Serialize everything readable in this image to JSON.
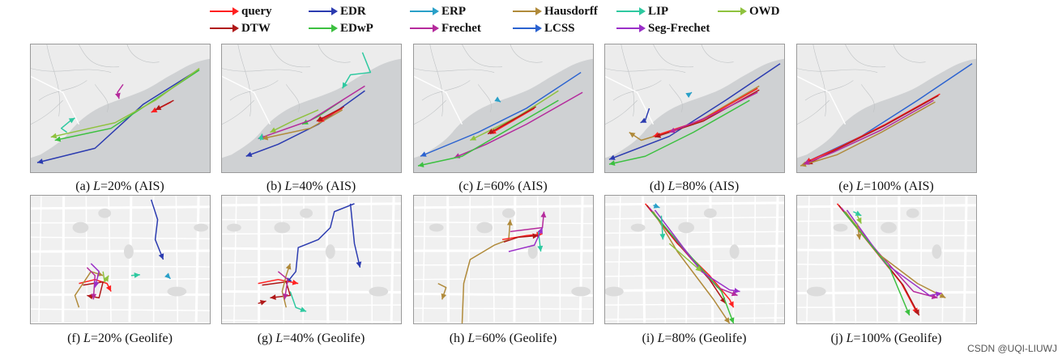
{
  "legend": [
    {
      "label": "query",
      "color": "#ff2020"
    },
    {
      "label": "EDR",
      "color": "#2b3bb0"
    },
    {
      "label": "ERP",
      "color": "#2aa0c8"
    },
    {
      "label": "Hausdorff",
      "color": "#b08a3a"
    },
    {
      "label": "LIP",
      "color": "#2ec9a0"
    },
    {
      "label": "OWD",
      "color": "#8fc23e"
    },
    {
      "label": "DTW",
      "color": "#b01818"
    },
    {
      "label": "EDwP",
      "color": "#3cc040"
    },
    {
      "label": "Frechet",
      "color": "#b52a9c"
    },
    {
      "label": "LCSS",
      "color": "#2a62d0"
    },
    {
      "label": "Seg-Frechet",
      "color": "#9a30c8"
    }
  ],
  "captions": [
    {
      "id": "a",
      "pre": "(a) ",
      "var": "L",
      "post": "=20% (AIS)"
    },
    {
      "id": "b",
      "pre": "(b) ",
      "var": "L",
      "post": "=40% (AIS)"
    },
    {
      "id": "c",
      "pre": "(c) ",
      "var": "L",
      "post": "=60% (AIS)"
    },
    {
      "id": "d",
      "pre": "(d) ",
      "var": "L",
      "post": "=80% (AIS)"
    },
    {
      "id": "e",
      "pre": "(e) ",
      "var": "L",
      "post": "=100% (AIS)"
    },
    {
      "id": "f",
      "pre": "(f) ",
      "var": "L",
      "post": "=20% (Geolife)"
    },
    {
      "id": "g",
      "pre": "(g) ",
      "var": "L",
      "post": "=40% (Geolife)"
    },
    {
      "id": "h",
      "pre": "(h) ",
      "var": "L",
      "post": "=60% (Geolife)"
    },
    {
      "id": "i",
      "pre": "(i) ",
      "var": "L",
      "post": "=80% (Geolife)"
    },
    {
      "id": "j",
      "pre": "(j) ",
      "var": "L",
      "post": "=100% (Geolife)"
    }
  ],
  "watermark": "CSDN @UQI-LIUWJ",
  "colors": {
    "map_bg": "#d4d6d8",
    "land": "#ececec",
    "water": "#cfd1d3",
    "road": "#ffffff"
  }
}
